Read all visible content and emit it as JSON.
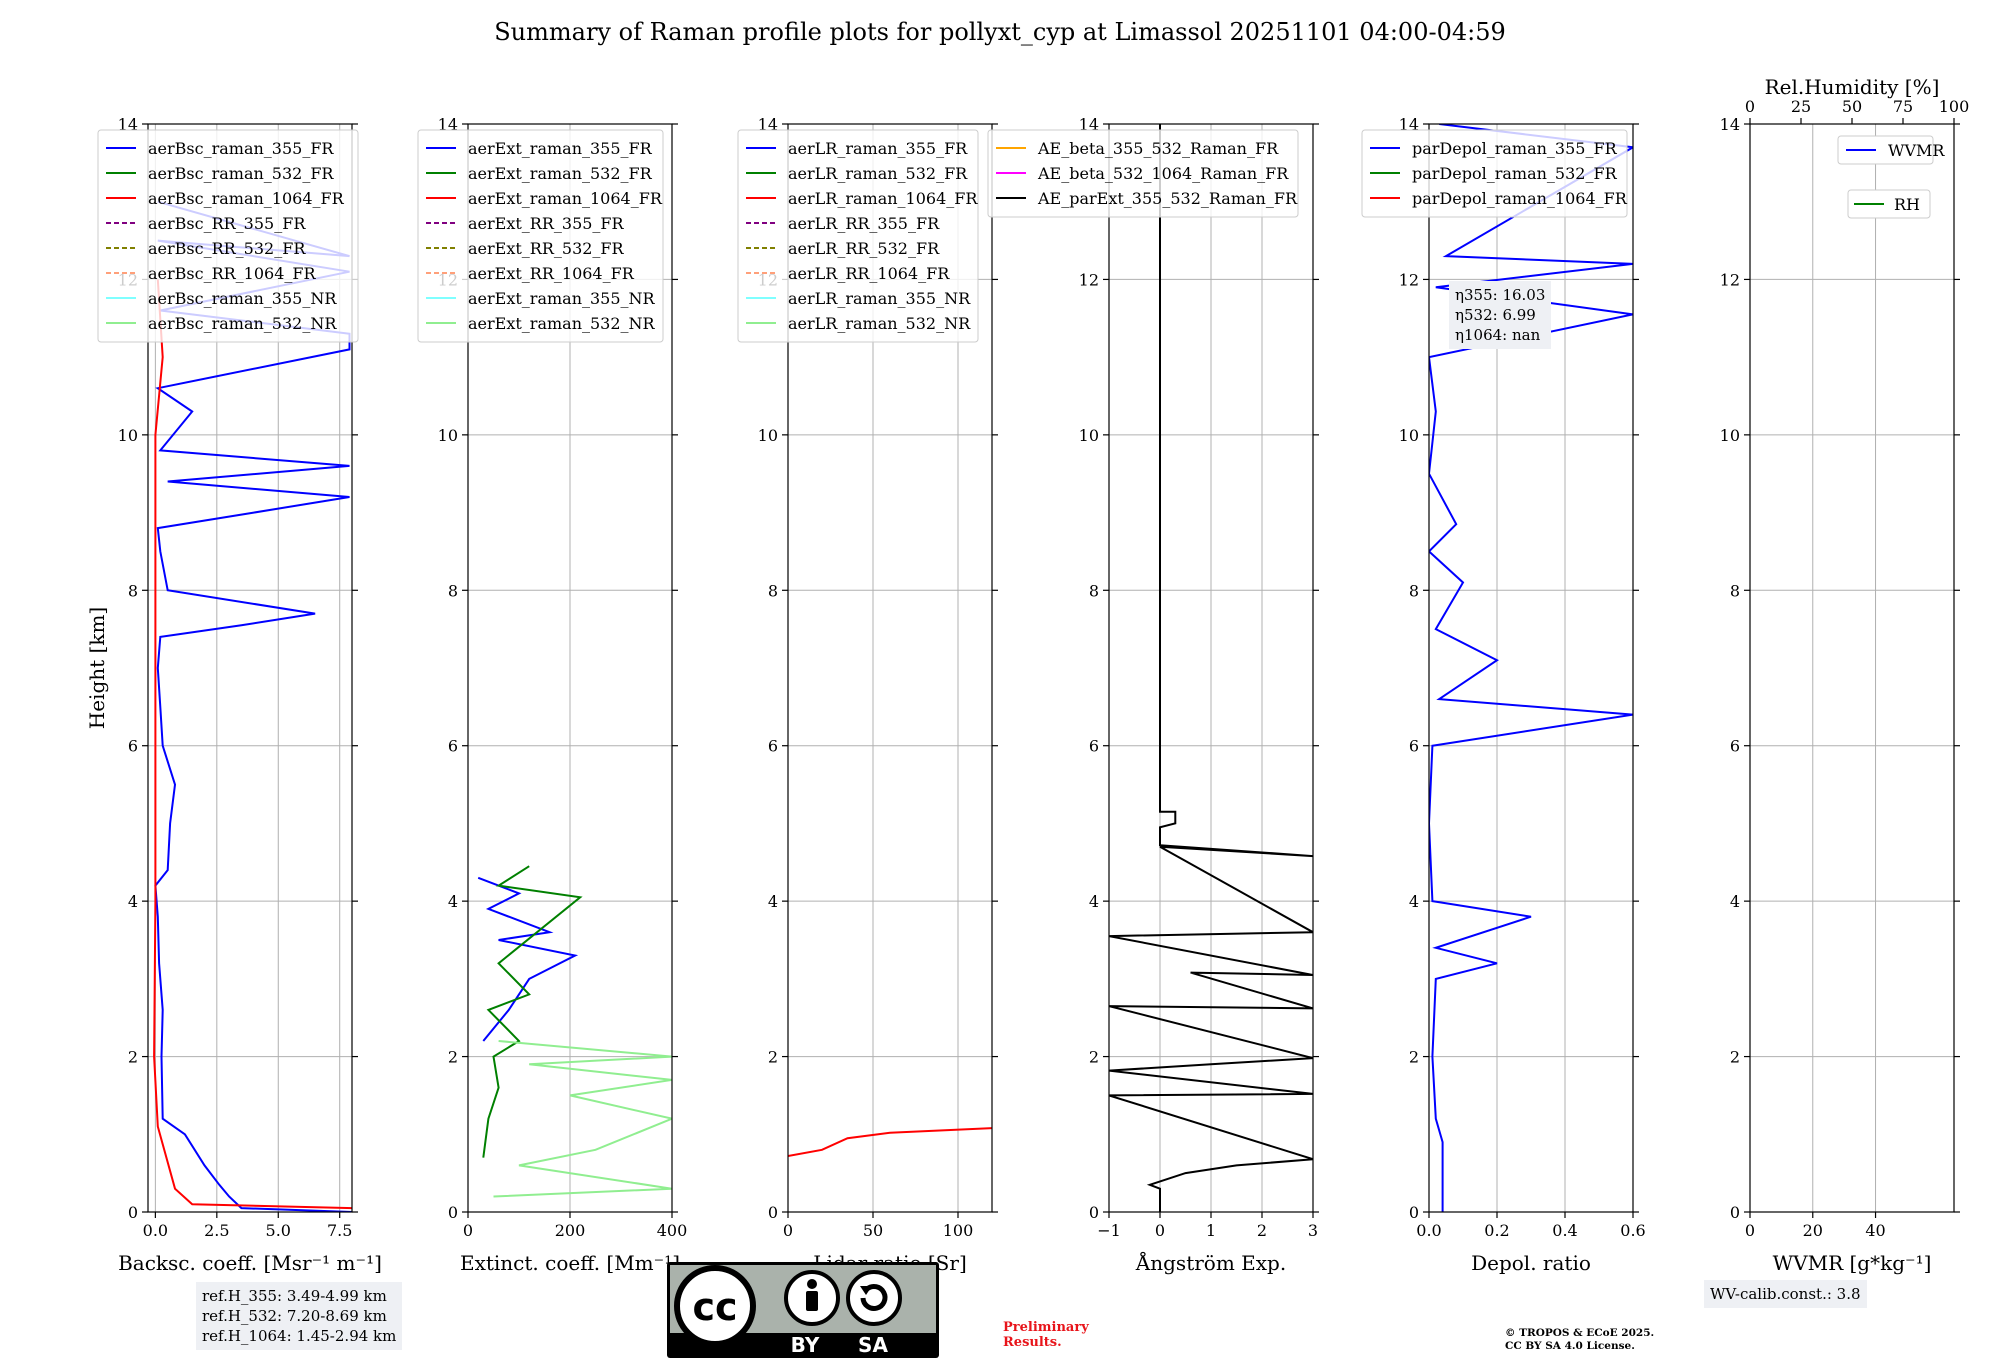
{
  "title": "Summary of Raman profile plots for pollyxt_cyp at Limassol 20251101 04:00-04:59",
  "ylabel": "Height [km]",
  "y_ticks": [
    "0",
    "2",
    "4",
    "6",
    "8",
    "10",
    "12",
    "14"
  ],
  "ref_heights": [
    "ref.H_355: 3.49-4.99 km",
    "ref.H_532: 7.20-8.69 km",
    "ref.H_1064: 1.45-2.94 km"
  ],
  "eta_box": [
    "η355: 16.03",
    "η532: 6.99",
    "η1064: nan"
  ],
  "wv_calib": "WV-calib.const.: 3.8",
  "preliminary": "Preliminary\nResults.",
  "copyright": "© TROPOS & ECoE 2025.\nCC BY SA 4.0 License.",
  "cc_badge": {
    "by": "BY",
    "sa": "SA",
    "cc": "cc"
  },
  "colors": {
    "blue": "#0000ff",
    "green": "#008000",
    "red": "#ff0000",
    "purple": "#800080",
    "olive": "#808000",
    "salmon": "#ffa07a",
    "cyan": "#7fffff",
    "lightgreen": "#90ee90",
    "orange": "#ffa500",
    "magenta": "#ff00ff",
    "black": "#000000"
  },
  "chart_data": [
    {
      "type": "line",
      "name": "backscatter",
      "xlabel": "Backsc. coeff. [Msr⁻¹ m⁻¹]",
      "xlim": [
        -0.3,
        8
      ],
      "ylim": [
        0,
        14
      ],
      "x_ticks": [
        "0.0",
        "2.5",
        "5.0",
        "7.5"
      ],
      "x_tick_values": [
        0,
        2.5,
        5,
        7.5
      ],
      "legend": [
        "aerBsc_raman_355_FR",
        "aerBsc_raman_532_FR",
        "aerBsc_raman_1064_FR",
        "aerBsc_RR_355_FR",
        "aerBsc_RR_532_FR",
        "aerBsc_RR_1064_FR",
        "aerBsc_raman_355_NR",
        "aerBsc_raman_532_NR"
      ],
      "legend_styles": [
        "blue",
        "green",
        "red",
        "purple-dash",
        "olive-dash",
        "salmon-dash",
        "cyan",
        "lightgreen"
      ],
      "series": [
        {
          "name": "aerBsc_raman_355_FR",
          "color": "blue",
          "points": [
            [
              8,
              0.0
            ],
            [
              3.5,
              0.05
            ],
            [
              3.0,
              0.2
            ],
            [
              2.6,
              0.35
            ],
            [
              2.0,
              0.6
            ],
            [
              1.2,
              1.0
            ],
            [
              0.3,
              1.2
            ],
            [
              0.25,
              2
            ],
            [
              0.3,
              2.6
            ],
            [
              0.15,
              3.2
            ],
            [
              0.1,
              3.8
            ],
            [
              0.0,
              4.2
            ],
            [
              0.5,
              4.4
            ],
            [
              0.6,
              5
            ],
            [
              0.8,
              5.5
            ],
            [
              0.3,
              6
            ],
            [
              0.2,
              6.5
            ],
            [
              0.1,
              7
            ],
            [
              0.2,
              7.4
            ],
            [
              3.5,
              7.55
            ],
            [
              6.5,
              7.7
            ],
            [
              0.5,
              8.0
            ],
            [
              0.2,
              8.5
            ],
            [
              0.1,
              8.8
            ],
            [
              4,
              9
            ],
            [
              7.9,
              9.2
            ],
            [
              0.5,
              9.4
            ],
            [
              7.9,
              9.6
            ],
            [
              0.2,
              9.8
            ],
            [
              1.5,
              10.3
            ],
            [
              0.1,
              10.6
            ],
            [
              7.9,
              11.1
            ],
            [
              7.9,
              11.3
            ],
            [
              0.2,
              11.6
            ],
            [
              7.9,
              12.1
            ],
            [
              0.1,
              12.5
            ],
            [
              7.9,
              12.3
            ],
            [
              0.1,
              13
            ]
          ]
        },
        {
          "name": "aerBsc_raman_1064_FR",
          "color": "red",
          "points": [
            [
              8,
              0.05
            ],
            [
              1.5,
              0.1
            ],
            [
              0.8,
              0.3
            ],
            [
              0.1,
              1.1
            ],
            [
              -0.05,
              2
            ],
            [
              0,
              4
            ],
            [
              0,
              6
            ],
            [
              0,
              8
            ],
            [
              0,
              10
            ],
            [
              0.3,
              11
            ],
            [
              0.1,
              12
            ]
          ]
        }
      ]
    },
    {
      "type": "line",
      "name": "extinction",
      "xlabel": "Extinct. coeff. [Mm⁻¹]",
      "xlim": [
        0,
        400
      ],
      "ylim": [
        0,
        14
      ],
      "x_ticks": [
        "0",
        "200",
        "400"
      ],
      "x_tick_values": [
        0,
        200,
        400
      ],
      "legend": [
        "aerExt_raman_355_FR",
        "aerExt_raman_532_FR",
        "aerExt_raman_1064_FR",
        "aerExt_RR_355_FR",
        "aerExt_RR_532_FR",
        "aerExt_RR_1064_FR",
        "aerExt_raman_355_NR",
        "aerExt_raman_532_NR"
      ],
      "legend_styles": [
        "blue",
        "green",
        "red",
        "purple-dash",
        "olive-dash",
        "salmon-dash",
        "cyan",
        "lightgreen"
      ],
      "series": [
        {
          "name": "aerExt_raman_355_FR",
          "color": "blue",
          "points": [
            [
              30,
              2.2
            ],
            [
              80,
              2.6
            ],
            [
              120,
              3.0
            ],
            [
              210,
              3.3
            ],
            [
              60,
              3.5
            ],
            [
              160,
              3.6
            ],
            [
              40,
              3.9
            ],
            [
              100,
              4.1
            ],
            [
              20,
              4.3
            ]
          ]
        },
        {
          "name": "aerExt_raman_532_FR",
          "color": "green",
          "points": [
            [
              30,
              0.7
            ],
            [
              40,
              1.2
            ],
            [
              60,
              1.6
            ],
            [
              50,
              2.0
            ],
            [
              100,
              2.2
            ],
            [
              40,
              2.6
            ],
            [
              120,
              2.8
            ],
            [
              60,
              3.2
            ],
            [
              220,
              4.05
            ],
            [
              60,
              4.2
            ],
            [
              120,
              4.45
            ]
          ]
        },
        {
          "name": "aerExt_raman_532_NR",
          "color": "lightgreen",
          "points": [
            [
              50,
              0.2
            ],
            [
              400,
              0.3
            ],
            [
              100,
              0.6
            ],
            [
              250,
              0.8
            ],
            [
              400,
              1.2
            ],
            [
              200,
              1.5
            ],
            [
              400,
              1.7
            ],
            [
              120,
              1.9
            ],
            [
              400,
              2.0
            ],
            [
              60,
              2.2
            ]
          ]
        }
      ]
    },
    {
      "type": "line",
      "name": "lidar_ratio",
      "xlabel": "Lidar ratio [Sr]",
      "xlim": [
        0,
        120
      ],
      "ylim": [
        0,
        14
      ],
      "x_ticks": [
        "0",
        "50",
        "100"
      ],
      "x_tick_values": [
        0,
        50,
        100
      ],
      "legend": [
        "aerLR_raman_355_FR",
        "aerLR_raman_532_FR",
        "aerLR_raman_1064_FR",
        "aerLR_RR_355_FR",
        "aerLR_RR_532_FR",
        "aerLR_RR_1064_FR",
        "aerLR_raman_355_NR",
        "aerLR_raman_532_NR"
      ],
      "legend_styles": [
        "blue",
        "green",
        "red",
        "purple-dash",
        "olive-dash",
        "salmon-dash",
        "cyan",
        "lightgreen"
      ],
      "series": [
        {
          "name": "aerLR_raman_1064_FR",
          "color": "red",
          "points": [
            [
              0,
              0.72
            ],
            [
              20,
              0.8
            ],
            [
              35,
              0.95
            ],
            [
              60,
              1.02
            ],
            [
              120,
              1.08
            ]
          ]
        }
      ]
    },
    {
      "type": "line",
      "name": "angstrom",
      "xlabel": "Ångström Exp.",
      "xlim": [
        -1,
        3
      ],
      "ylim": [
        0,
        14
      ],
      "x_ticks": [
        "−1",
        "0",
        "1",
        "2",
        "3"
      ],
      "x_tick_values": [
        -1,
        0,
        1,
        2,
        3
      ],
      "legend": [
        "AE_beta_355_532_Raman_FR",
        "AE_beta_532_1064_Raman_FR",
        "AE_parExt_355_532_Raman_FR"
      ],
      "legend_styles": [
        "orange",
        "magenta",
        "black"
      ],
      "series": [
        {
          "name": "AE_parExt_355_532_Raman_FR",
          "color": "black",
          "points": [
            [
              0,
              0
            ],
            [
              0,
              0.3
            ],
            [
              -0.2,
              0.35
            ],
            [
              0.5,
              0.5
            ],
            [
              1.5,
              0.6
            ],
            [
              3,
              0.68
            ],
            [
              -1,
              1.5
            ],
            [
              3,
              1.52
            ],
            [
              -1,
              1.82
            ],
            [
              1,
              1.9
            ],
            [
              3,
              1.98
            ],
            [
              -1,
              2.65
            ],
            [
              3,
              2.62
            ],
            [
              0.6,
              3.08
            ],
            [
              3,
              3.05
            ],
            [
              -1,
              3.55
            ],
            [
              3,
              3.6
            ],
            [
              0,
              4.7
            ],
            [
              3,
              4.58
            ],
            [
              0,
              4.72
            ],
            [
              0,
              4.95
            ],
            [
              0.3,
              5.0
            ],
            [
              0.3,
              5.15
            ],
            [
              0,
              5.15
            ],
            [
              0,
              14
            ]
          ]
        }
      ]
    },
    {
      "type": "line",
      "name": "depolarization",
      "xlabel": "Depol. ratio",
      "xlim": [
        0,
        0.6
      ],
      "ylim": [
        0,
        14
      ],
      "x_ticks": [
        "0.0",
        "0.2",
        "0.4",
        "0.6"
      ],
      "x_tick_values": [
        0,
        0.2,
        0.4,
        0.6
      ],
      "legend": [
        "parDepol_raman_355_FR",
        "parDepol_raman_532_FR",
        "parDepol_raman_1064_FR"
      ],
      "legend_styles": [
        "blue",
        "green",
        "red"
      ],
      "series": [
        {
          "name": "parDepol_raman_355_FR",
          "color": "blue",
          "points": [
            [
              0.04,
              0
            ],
            [
              0.04,
              0.5
            ],
            [
              0.04,
              0.9
            ],
            [
              0.02,
              1.2
            ],
            [
              0.01,
              2
            ],
            [
              0.02,
              3.0
            ],
            [
              0.2,
              3.2
            ],
            [
              0.02,
              3.4
            ],
            [
              0.3,
              3.8
            ],
            [
              0.01,
              4.0
            ],
            [
              0.0,
              5
            ],
            [
              0.01,
              6
            ],
            [
              0.6,
              6.4
            ],
            [
              0.03,
              6.6
            ],
            [
              0.2,
              7.1
            ],
            [
              0.02,
              7.5
            ],
            [
              0.1,
              8.1
            ],
            [
              0.0,
              8.5
            ],
            [
              0.08,
              8.85
            ],
            [
              0.0,
              9.5
            ],
            [
              0.02,
              10.3
            ],
            [
              0.0,
              11
            ],
            [
              0.6,
              11.55
            ],
            [
              0.02,
              11.9
            ],
            [
              0.6,
              12.2
            ],
            [
              0.05,
              12.3
            ],
            [
              0.6,
              13.7
            ],
            [
              0.03,
              14
            ]
          ]
        }
      ]
    },
    {
      "type": "line",
      "name": "wvmr",
      "xlabel": "WVMR [g*kg⁻¹]",
      "xlim": [
        0,
        65
      ],
      "ylim": [
        0,
        14
      ],
      "x_ticks": [
        "0",
        "20",
        "40"
      ],
      "x_tick_values": [
        0,
        20,
        40
      ],
      "top_label": "Rel.Humidity [%]",
      "top_ticks": [
        "0",
        "25",
        "50",
        "75",
        "100"
      ],
      "top_tick_values": [
        0,
        25,
        50,
        75,
        100
      ],
      "legend": [
        "WVMR",
        "RH"
      ],
      "legend_styles": [
        "blue",
        "green"
      ],
      "series": []
    }
  ]
}
